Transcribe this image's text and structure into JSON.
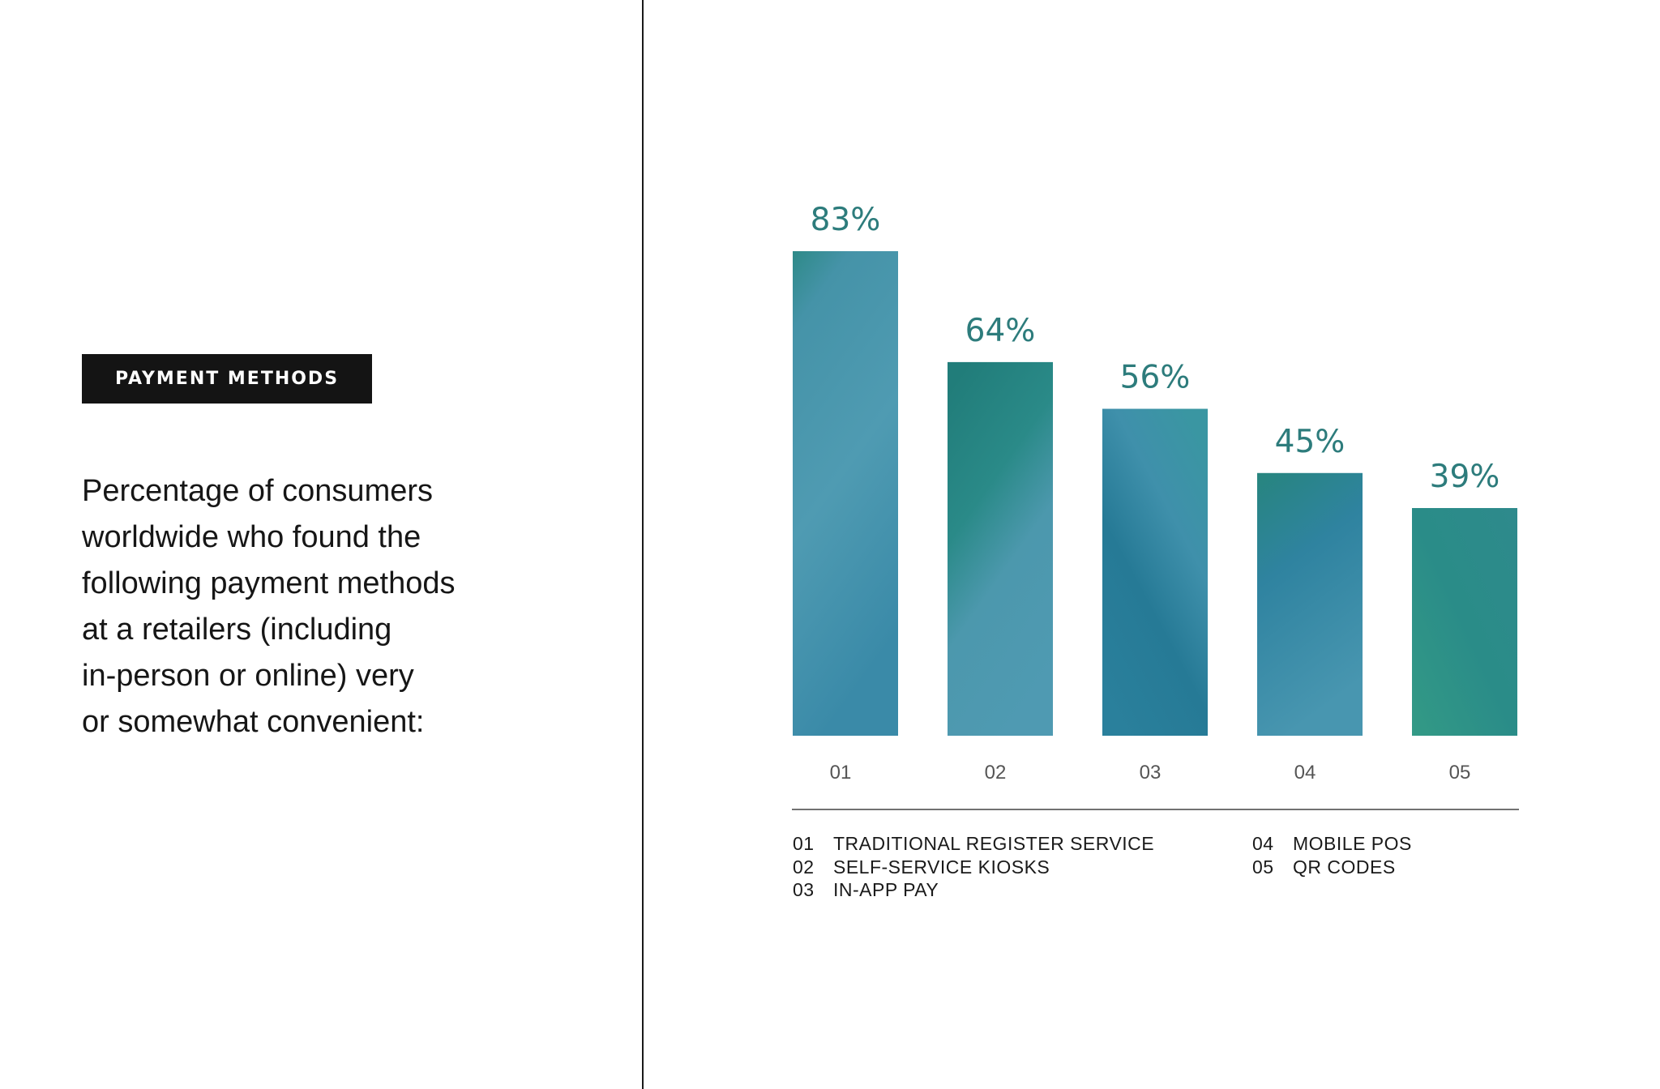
{
  "badge": "PAYMENT METHODS",
  "description_lines": [
    "Percentage of consumers",
    "worldwide who found the",
    "following payment methods",
    "at a retailers (including",
    "in-person or online) very",
    "or somewhat convenient:"
  ],
  "chart_data": {
    "type": "bar",
    "categories": [
      "01",
      "02",
      "03",
      "04",
      "05"
    ],
    "values": [
      83,
      64,
      56,
      45,
      39
    ],
    "value_labels": [
      "83%",
      "64%",
      "56%",
      "45%",
      "39%"
    ],
    "ylim": [
      0,
      100
    ],
    "grid": false,
    "colors": {
      "teal": "#2a8a84",
      "blue": "#4a98b0",
      "dark_blue": "#267a96",
      "label": "#2d7c7c"
    },
    "legend": {
      "placement": "bottom",
      "items": [
        {
          "num": "01",
          "label": "TRADITIONAL REGISTER SERVICE"
        },
        {
          "num": "02",
          "label": "SELF-SERVICE KIOSKS"
        },
        {
          "num": "03",
          "label": "IN-APP PAY"
        },
        {
          "num": "04",
          "label": "MOBILE POS"
        },
        {
          "num": "05",
          "label": "QR CODES"
        }
      ]
    }
  }
}
